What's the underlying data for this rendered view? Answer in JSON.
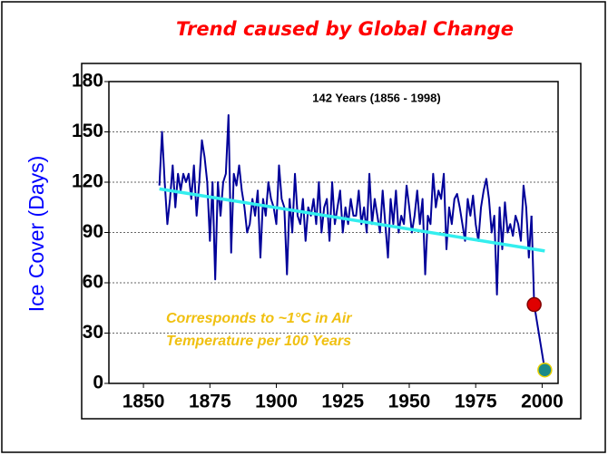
{
  "chart_data": {
    "type": "line",
    "title": "Trend caused by Global Change",
    "ylabel": "Ice Cover (Days)",
    "annotation": "142 Years (1856 - 1998)",
    "note": [
      "Corresponds to ~1°C in Air",
      "Temperature per 100 Years"
    ],
    "xlim": [
      1837,
      2006
    ],
    "ylim": [
      0,
      180
    ],
    "xticks": [
      1850,
      1875,
      1900,
      1925,
      1950,
      1975,
      2000
    ],
    "yticks": [
      0,
      30,
      60,
      90,
      120,
      150,
      180
    ],
    "grid": true,
    "series": [
      {
        "color": "#000099",
        "x": [
          1856,
          1857,
          1858,
          1859,
          1860,
          1861,
          1862,
          1863,
          1864,
          1865,
          1866,
          1867,
          1868,
          1869,
          1870,
          1871,
          1872,
          1873,
          1874,
          1875,
          1876,
          1877,
          1878,
          1879,
          1880,
          1881,
          1882,
          1883,
          1884,
          1885,
          1886,
          1887,
          1888,
          1889,
          1890,
          1891,
          1892,
          1893,
          1894,
          1895,
          1896,
          1897,
          1898,
          1899,
          1900,
          1901,
          1902,
          1903,
          1904,
          1905,
          1906,
          1907,
          1908,
          1909,
          1910,
          1911,
          1912,
          1913,
          1914,
          1915,
          1916,
          1917,
          1918,
          1919,
          1920,
          1921,
          1922,
          1923,
          1924,
          1925,
          1926,
          1927,
          1928,
          1929,
          1930,
          1931,
          1932,
          1933,
          1934,
          1935,
          1936,
          1937,
          1938,
          1939,
          1940,
          1941,
          1942,
          1943,
          1944,
          1945,
          1946,
          1947,
          1948,
          1949,
          1950,
          1951,
          1952,
          1953,
          1954,
          1955,
          1956,
          1957,
          1958,
          1959,
          1960,
          1961,
          1962,
          1963,
          1964,
          1965,
          1966,
          1967,
          1968,
          1969,
          1970,
          1971,
          1972,
          1973,
          1974,
          1975,
          1976,
          1977,
          1978,
          1979,
          1980,
          1981,
          1982,
          1983,
          1984,
          1985,
          1986,
          1987,
          1988,
          1989,
          1990,
          1991,
          1992,
          1993,
          1994,
          1995,
          1996
        ],
        "values": [
          118,
          150,
          120,
          95,
          110,
          130,
          105,
          125,
          115,
          125,
          120,
          125,
          110,
          130,
          100,
          120,
          145,
          135,
          120,
          85,
          120,
          62,
          120,
          100,
          120,
          125,
          160,
          78,
          125,
          118,
          130,
          115,
          105,
          90,
          95,
          110,
          100,
          115,
          75,
          110,
          100,
          120,
          110,
          105,
          95,
          130,
          110,
          105,
          65,
          110,
          90,
          125,
          100,
          95,
          110,
          85,
          105,
          100,
          110,
          95,
          120,
          90,
          105,
          110,
          85,
          120,
          95,
          105,
          115,
          90,
          105,
          95,
          110,
          100,
          100,
          115,
          95,
          105,
          90,
          125,
          95,
          110,
          100,
          90,
          115,
          95,
          75,
          110,
          95,
          115,
          90,
          100,
          95,
          118,
          105,
          90,
          100,
          115,
          95,
          110,
          65,
          100,
          95,
          125,
          105,
          115,
          110,
          125,
          80,
          105,
          95,
          110,
          113,
          105,
          95,
          85,
          110,
          100,
          112,
          95,
          85,
          105,
          115,
          122,
          110,
          90,
          100,
          53,
          105,
          80,
          108,
          90,
          95,
          88,
          100,
          95,
          85,
          118,
          105,
          75,
          100
        ]
      },
      {
        "x": [
          1997,
          2001
        ],
        "values": [
          47,
          8
        ],
        "colors": [
          "#e00000",
          "#1a8a8a"
        ]
      },
      {
        "color": "#33eeee",
        "x": [
          1856,
          2001
        ],
        "values": [
          116,
          79
        ]
      }
    ]
  }
}
